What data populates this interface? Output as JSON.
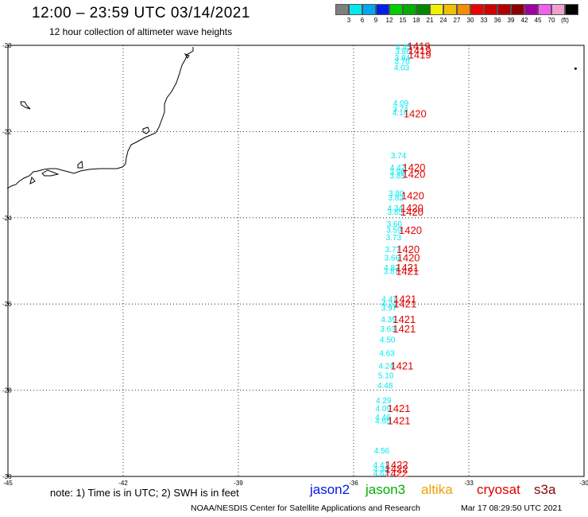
{
  "title": "12:00 – 23:59 UTC 03/14/2021",
  "subtitle": "12 hour collection of altimeter wave heights",
  "colorbar": {
    "colors": [
      "#7f7f7f",
      "#00e8f0",
      "#00a8f0",
      "#0020e8",
      "#00d000",
      "#00b000",
      "#008800",
      "#f0f000",
      "#f0c000",
      "#f09000",
      "#f00000",
      "#d00000",
      "#b00000",
      "#8c0000",
      "#a000a0",
      "#f060f0",
      "#f0a0d0",
      "#000000"
    ],
    "labels": [
      "3",
      "6",
      "9",
      "12",
      "15",
      "18",
      "21",
      "24",
      "27",
      "30",
      "33",
      "36",
      "39",
      "42",
      "45",
      "70",
      "(ft)"
    ]
  },
  "axes": {
    "lat_ticks": [
      "-20",
      "-22",
      "-24",
      "-26",
      "-28",
      "-30"
    ],
    "lon_ticks": [
      "-45",
      "-42",
      "-39",
      "-36",
      "-33",
      "-30"
    ]
  },
  "observations": {
    "color": "#00e8f0",
    "points": [
      {
        "lat": -20.03,
        "lon": -34.9,
        "swh": "4.45"
      },
      {
        "lat": -20.13,
        "lon": -34.92,
        "swh": "3.86"
      },
      {
        "lat": -20.28,
        "lon": -34.93,
        "swh": "3.84"
      },
      {
        "lat": -20.36,
        "lon": -34.94,
        "swh": "3.76"
      },
      {
        "lat": -20.51,
        "lon": -34.95,
        "swh": "4.03"
      },
      {
        "lat": -21.33,
        "lon": -34.97,
        "swh": "4.09"
      },
      {
        "lat": -21.47,
        "lon": -34.98,
        "swh": "3.74"
      },
      {
        "lat": -21.55,
        "lon": -34.99,
        "swh": "4.14"
      },
      {
        "lat": -22.55,
        "lon": -35.03,
        "swh": "3.74"
      },
      {
        "lat": -22.82,
        "lon": -35.05,
        "swh": "4.42"
      },
      {
        "lat": -22.92,
        "lon": -35.06,
        "swh": "3.96"
      },
      {
        "lat": -23.02,
        "lon": -35.06,
        "swh": "3.85"
      },
      {
        "lat": -23.42,
        "lon": -35.09,
        "swh": "3.80"
      },
      {
        "lat": -23.52,
        "lon": -35.1,
        "swh": "3.82"
      },
      {
        "lat": -23.76,
        "lon": -35.12,
        "swh": "4.34"
      },
      {
        "lat": -23.86,
        "lon": -35.12,
        "swh": "3.85"
      },
      {
        "lat": -24.13,
        "lon": -35.14,
        "swh": "3.60"
      },
      {
        "lat": -24.27,
        "lon": -35.15,
        "swh": "3.59"
      },
      {
        "lat": -24.45,
        "lon": -35.16,
        "swh": "3.73"
      },
      {
        "lat": -24.72,
        "lon": -35.18,
        "swh": "3.77"
      },
      {
        "lat": -24.92,
        "lon": -35.2,
        "swh": "3.66"
      },
      {
        "lat": -25.15,
        "lon": -35.21,
        "swh": "4.82"
      },
      {
        "lat": -25.23,
        "lon": -35.22,
        "swh": "3.87"
      },
      {
        "lat": -25.88,
        "lon": -35.27,
        "swh": "4.47"
      },
      {
        "lat": -25.99,
        "lon": -35.27,
        "swh": "4.21"
      },
      {
        "lat": -26.08,
        "lon": -35.28,
        "swh": "3.97"
      },
      {
        "lat": -26.35,
        "lon": -35.29,
        "swh": "4.39"
      },
      {
        "lat": -26.57,
        "lon": -35.31,
        "swh": "3.63"
      },
      {
        "lat": -26.82,
        "lon": -35.32,
        "swh": "4.50"
      },
      {
        "lat": -27.13,
        "lon": -35.33,
        "swh": "4.63"
      },
      {
        "lat": -27.43,
        "lon": -35.35,
        "swh": "4.24"
      },
      {
        "lat": -27.65,
        "lon": -35.36,
        "swh": "5.10"
      },
      {
        "lat": -27.88,
        "lon": -35.38,
        "swh": "4.48"
      },
      {
        "lat": -28.23,
        "lon": -35.42,
        "swh": "4.29"
      },
      {
        "lat": -28.41,
        "lon": -35.43,
        "swh": "4.09"
      },
      {
        "lat": -28.62,
        "lon": -35.44,
        "swh": "4.46"
      },
      {
        "lat": -28.7,
        "lon": -35.44,
        "swh": "4.65"
      },
      {
        "lat": -29.39,
        "lon": -35.47,
        "swh": "4.56"
      },
      {
        "lat": -29.72,
        "lon": -35.49,
        "swh": "4.41"
      },
      {
        "lat": -29.82,
        "lon": -35.49,
        "swh": "4.34"
      },
      {
        "lat": -29.92,
        "lon": -35.49,
        "swh": "4.62"
      }
    ]
  },
  "pass_times": {
    "color": "#e00000",
    "labels": [
      {
        "lat": -20.01,
        "lon": -34.6,
        "time": "1419"
      },
      {
        "lat": -20.11,
        "lon": -34.58,
        "time": "1419"
      },
      {
        "lat": -20.21,
        "lon": -34.58,
        "time": "1419"
      },
      {
        "lat": -21.58,
        "lon": -34.7,
        "time": "1420"
      },
      {
        "lat": -22.82,
        "lon": -34.73,
        "time": "1420"
      },
      {
        "lat": -22.98,
        "lon": -34.73,
        "time": "1420"
      },
      {
        "lat": -23.48,
        "lon": -34.76,
        "time": "1420"
      },
      {
        "lat": -23.76,
        "lon": -34.78,
        "time": "1420"
      },
      {
        "lat": -23.86,
        "lon": -34.78,
        "time": "1420"
      },
      {
        "lat": -24.28,
        "lon": -34.82,
        "time": "1420"
      },
      {
        "lat": -24.72,
        "lon": -34.88,
        "time": "1420"
      },
      {
        "lat": -24.92,
        "lon": -34.87,
        "time": "1420"
      },
      {
        "lat": -25.15,
        "lon": -34.9,
        "time": "1421"
      },
      {
        "lat": -25.23,
        "lon": -34.9,
        "time": "1421"
      },
      {
        "lat": -25.88,
        "lon": -34.96,
        "time": "1421"
      },
      {
        "lat": -25.99,
        "lon": -34.96,
        "time": "1421"
      },
      {
        "lat": -26.35,
        "lon": -34.98,
        "time": "1421"
      },
      {
        "lat": -26.57,
        "lon": -34.98,
        "time": "1421"
      },
      {
        "lat": -27.43,
        "lon": -35.04,
        "time": "1421"
      },
      {
        "lat": -28.41,
        "lon": -35.12,
        "time": "1421"
      },
      {
        "lat": -28.7,
        "lon": -35.12,
        "time": "1421"
      },
      {
        "lat": -29.72,
        "lon": -35.18,
        "time": "1422"
      },
      {
        "lat": -29.82,
        "lon": -35.18,
        "time": "1422"
      },
      {
        "lat": -29.92,
        "lon": -35.19,
        "time": "1422"
      }
    ]
  },
  "stray_point": {
    "lat": -20.54,
    "lon": -30.22
  },
  "note": "note:  1) Time is in UTC;  2) SWH is in feet",
  "legend": [
    {
      "label": "jason2",
      "color": "#0018e8"
    },
    {
      "label": "jason3",
      "color": "#00b000"
    },
    {
      "label": "altika",
      "color": "#f0a000"
    },
    {
      "label": "cryosat",
      "color": "#e00000"
    },
    {
      "label": "s3a",
      "color": "#8c0000"
    }
  ],
  "credit": "NOAA/NESDIS Center for Satellite Applications and Research",
  "timestamp": "Mar 17 08:29:50 UTC 2021"
}
